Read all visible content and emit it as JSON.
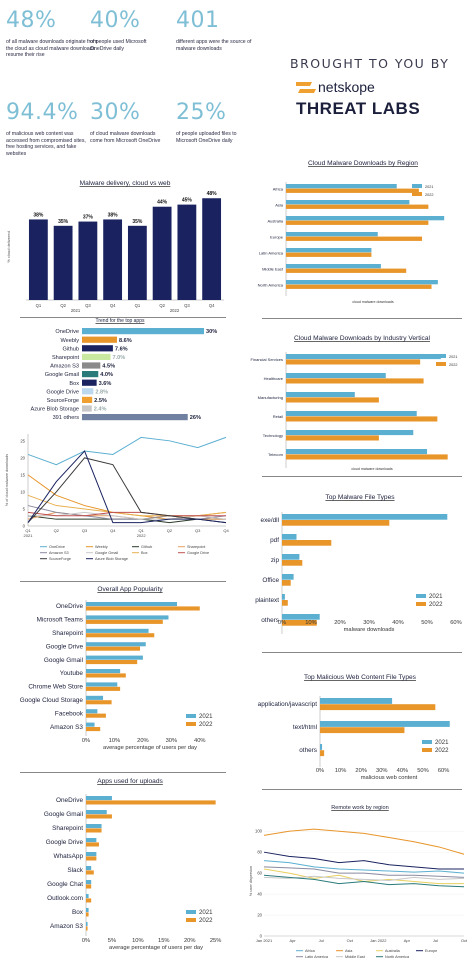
{
  "stats": [
    {
      "value": "48%",
      "text": "of all malware downloads originate from the cloud as cloud malware downloads resume their rise"
    },
    {
      "value": "40%",
      "text": "of people used Microsoft OneDrive daily"
    },
    {
      "value": "401",
      "text": "different apps were the source of malware downloads"
    },
    {
      "value": "94.4%",
      "text": "of malicious web content was accessed from compromised sites, free hosting services, and fake websites"
    },
    {
      "value": "30%",
      "text": "of cloud malware downloads come from Microsoft OneDrive"
    },
    {
      "value": "25%",
      "text": "of people uploaded files to Microsoft OneDrive daily"
    }
  ],
  "brand": {
    "brought": "BROUGHT TO YOU BY",
    "netskope": "netskope",
    "threat_labs": "THREAT LABS",
    "orange": "#f0a030",
    "navy": "#1b1f3b"
  },
  "colors": {
    "y2021": "#5bafd0",
    "y2022": "#e8952a",
    "navy": "#1a2360"
  },
  "chart_data": [
    {
      "id": "malware-delivery",
      "type": "bar",
      "title": "Malware delivery, cloud vs web",
      "ylabel": "% cloud delivered",
      "categories": [
        "Q1",
        "Q2",
        "Q3",
        "Q4",
        "Q1",
        "Q2",
        "Q3",
        "Q4"
      ],
      "year_labels": [
        "2021",
        "2022"
      ],
      "values": [
        38,
        35,
        37,
        38,
        35,
        44,
        45,
        48
      ],
      "value_labels": [
        "38%",
        "35%",
        "37%",
        "38%",
        "35%",
        "44%",
        "45%",
        "48%"
      ],
      "ylim": [
        0,
        50
      ]
    },
    {
      "id": "trend-top-apps",
      "type": "bar",
      "title": "Trend for the top apps",
      "categories": [
        "OneDrive",
        "Weebly",
        "Github",
        "Sharepoint",
        "Amazon S3",
        "Google Gmail",
        "Box",
        "Google Drive",
        "SourceForge",
        "Azure Blob Storage",
        "391 others"
      ],
      "values": [
        30,
        8.6,
        7.6,
        7.0,
        4.5,
        4.0,
        3.6,
        2.8,
        2.5,
        2.4,
        26
      ],
      "value_labels": [
        "30%",
        "8.6%",
        "7.6%",
        "7.0%",
        "4.5%",
        "4.0%",
        "3.6%",
        "2.8%",
        "2.5%",
        "2.4%",
        "26%"
      ],
      "bar_colors": [
        "#5bafd0",
        "#e8952a",
        "#1a2360",
        "#c9e8a0",
        "#8a8a8a",
        "#2a7a7a",
        "#1a2360",
        "#bcd8ee",
        "#f0a030",
        "#c8c8c8",
        "#7080a0"
      ]
    },
    {
      "id": "trend-line",
      "type": "line",
      "ylabel": "% of cloud malware downloads",
      "x": [
        "Q1 2021",
        "Q2",
        "Q3",
        "Q4",
        "Q1 2022",
        "Q2",
        "Q3",
        "Q4"
      ],
      "x_ticks": [
        "Q1",
        "Q2",
        "Q3",
        "Q4",
        "Q1",
        "Q2",
        "Q3",
        "Q4"
      ],
      "x_year_labels": [
        "2021",
        "2022"
      ],
      "yticks": [
        0,
        5,
        10,
        15,
        20,
        25
      ],
      "ylim": [
        0,
        27
      ],
      "series": [
        {
          "name": "OneDrive",
          "color": "#5bafd0",
          "values": [
            21,
            18,
            22,
            21,
            26,
            25,
            23,
            26
          ]
        },
        {
          "name": "Weebly",
          "color": "#e8952a",
          "values": [
            15,
            9,
            6,
            4,
            3,
            2,
            3,
            4
          ]
        },
        {
          "name": "Github",
          "color": "#2a3a2a",
          "values": [
            3,
            2,
            2,
            2,
            2,
            1,
            2,
            2
          ]
        },
        {
          "name": "Sharepoint",
          "color": "#e8a060",
          "values": [
            2,
            4,
            3,
            3,
            2,
            3,
            2,
            2
          ]
        },
        {
          "name": "Amazon S3",
          "color": "#8a8aa0",
          "values": [
            6,
            4,
            3,
            2,
            2,
            3,
            2,
            3
          ]
        },
        {
          "name": "Google Gmail",
          "color": "#c8c8c8",
          "values": [
            3,
            3,
            4,
            3,
            2,
            2,
            3,
            2
          ]
        },
        {
          "name": "Box",
          "color": "#e8b050",
          "values": [
            9,
            6,
            5,
            4,
            3,
            3,
            3,
            4
          ]
        },
        {
          "name": "Google Drive",
          "color": "#c05050",
          "values": [
            4,
            3,
            3,
            4,
            4,
            3,
            3,
            3
          ]
        },
        {
          "name": "SourceForge",
          "color": "#3a3a3a",
          "values": [
            1,
            10,
            20,
            18,
            4,
            3,
            2,
            1
          ]
        },
        {
          "name": "Azure Blob Storage",
          "color": "#1a2360",
          "values": [
            1,
            13,
            22,
            1,
            1,
            2,
            2,
            1
          ]
        }
      ]
    },
    {
      "id": "overall-app-popularity",
      "type": "bar",
      "title": "Overall App Popularity",
      "xlabel": "average percentage of users per day",
      "categories": [
        "OneDrive",
        "Microsoft Teams",
        "Sharepoint",
        "Google Drive",
        "Google Gmail",
        "Youtube",
        "Chrome Web Store",
        "Google Cloud Storage",
        "Facebook",
        "Amazon S3"
      ],
      "series": [
        {
          "name": "2021",
          "values": [
            32,
            29,
            22,
            21,
            20,
            12,
            11,
            6,
            4,
            3
          ]
        },
        {
          "name": "2022",
          "values": [
            40,
            27,
            24,
            19,
            18,
            14,
            12,
            9,
            7,
            5
          ]
        }
      ],
      "xticks": [
        "0%",
        "10%",
        "20%",
        "30%",
        "40%"
      ],
      "xlim": [
        0,
        45
      ]
    },
    {
      "id": "apps-used-for-uploads",
      "type": "bar",
      "title": "Apps used for uploads",
      "xlabel": "average percentage of users per day",
      "categories": [
        "OneDrive",
        "Google Gmail",
        "Sharepoint",
        "Google Drive",
        "WhatsApp",
        "Slack",
        "Google Chat",
        "Outlook.com",
        "Box",
        "Amazon S3"
      ],
      "series": [
        {
          "name": "2021",
          "values": [
            5,
            4,
            3,
            2,
            2,
            1,
            1,
            0.5,
            0.5,
            0.3
          ]
        },
        {
          "name": "2022",
          "values": [
            25,
            5,
            3,
            2.5,
            2,
            1.5,
            1,
            1,
            0.5,
            0.3
          ]
        }
      ],
      "xticks": [
        "0%",
        "5%",
        "10%",
        "15%",
        "20%",
        "25%"
      ],
      "xlim": [
        0,
        27
      ]
    },
    {
      "id": "cloud-malware-by-region",
      "type": "bar",
      "title": "Cloud Malware Downloads by Region",
      "xlabel": "cloud malware downloads",
      "categories": [
        "Africa",
        "Asia",
        "Australia",
        "Europe",
        "Latin America",
        "Middle East",
        "North America"
      ],
      "series": [
        {
          "name": "2021",
          "values": [
            35,
            39,
            50,
            29,
            27,
            30,
            48
          ]
        },
        {
          "name": "2022",
          "values": [
            42,
            45,
            45,
            43,
            27,
            38,
            46
          ]
        }
      ],
      "xlim": [
        0,
        55
      ]
    },
    {
      "id": "cloud-malware-by-industry",
      "type": "bar",
      "title": "Cloud Malware Downloads by Industry Vertical",
      "xlabel": "cloud malware downloads",
      "categories": [
        "Financial Services",
        "Healthcare",
        "Manufacturing",
        "Retail",
        "Technology",
        "Telecom"
      ],
      "series": [
        {
          "name": "2021",
          "values": [
            45,
            29,
            20,
            38,
            37,
            41
          ]
        },
        {
          "name": "2022",
          "values": [
            39,
            40,
            27,
            44,
            27,
            47
          ]
        }
      ],
      "xlim": [
        0,
        50
      ]
    },
    {
      "id": "top-malware-file-types",
      "type": "bar",
      "title": "Top Malware File Types",
      "xlabel": "malware downloads",
      "categories": [
        "exe/dll",
        "pdf",
        "zip",
        "Office",
        "plaintext",
        "others"
      ],
      "series": [
        {
          "name": "2021",
          "values": [
            57,
            5,
            6,
            4,
            1,
            13
          ]
        },
        {
          "name": "2022",
          "values": [
            37,
            17,
            7,
            3,
            2,
            12
          ]
        }
      ],
      "xticks": [
        "0%",
        "10%",
        "20%",
        "30%",
        "40%",
        "50%",
        "60%"
      ],
      "xlim": [
        0,
        60
      ]
    },
    {
      "id": "top-malicious-web-content",
      "type": "bar",
      "title": "Top Malicious Web Content File Types",
      "xlabel": "malicious web content",
      "categories": [
        "application/javascript",
        "text/html",
        "others"
      ],
      "series": [
        {
          "name": "2021",
          "values": [
            35,
            63,
            1
          ]
        },
        {
          "name": "2022",
          "values": [
            56,
            41,
            2
          ]
        }
      ],
      "xticks": [
        "0%",
        "10%",
        "20%",
        "30%",
        "40%",
        "50%",
        "60%"
      ],
      "xlim": [
        0,
        67
      ]
    },
    {
      "id": "remote-work-by-region",
      "type": "line",
      "title": "Remote work by region",
      "ylabel": "% user dispersion",
      "x_ticks": [
        "Jan 2021",
        "Apr",
        "Jul",
        "Oct",
        "Jan 2022",
        "Apr",
        "Jul",
        "Oct"
      ],
      "yticks": [
        0,
        20,
        40,
        60,
        80,
        100
      ],
      "ylim": [
        0,
        105
      ],
      "series": [
        {
          "name": "Africa",
          "color": "#5bafd0",
          "values": [
            72,
            70,
            66,
            64,
            63,
            62,
            61,
            62,
            60
          ]
        },
        {
          "name": "Asia",
          "color": "#e8952a",
          "values": [
            96,
            100,
            102,
            100,
            98,
            94,
            90,
            85,
            78
          ]
        },
        {
          "name": "Australia",
          "color": "#e8d060",
          "values": [
            64,
            60,
            55,
            58,
            52,
            54,
            52,
            50,
            50
          ]
        },
        {
          "name": "Europe",
          "color": "#1a2360",
          "values": [
            80,
            76,
            74,
            70,
            72,
            68,
            66,
            64,
            64
          ]
        },
        {
          "name": "Latin America",
          "color": "#8a8aa0",
          "values": [
            66,
            65,
            64,
            60,
            60,
            58,
            58,
            57,
            56
          ]
        },
        {
          "name": "Middle East",
          "color": "#c8c8c8",
          "values": [
            56,
            55,
            57,
            55,
            54,
            53,
            56,
            54,
            55
          ]
        },
        {
          "name": "North America",
          "color": "#2a7a7a",
          "values": [
            58,
            56,
            54,
            50,
            52,
            49,
            50,
            48,
            47
          ]
        }
      ]
    }
  ]
}
